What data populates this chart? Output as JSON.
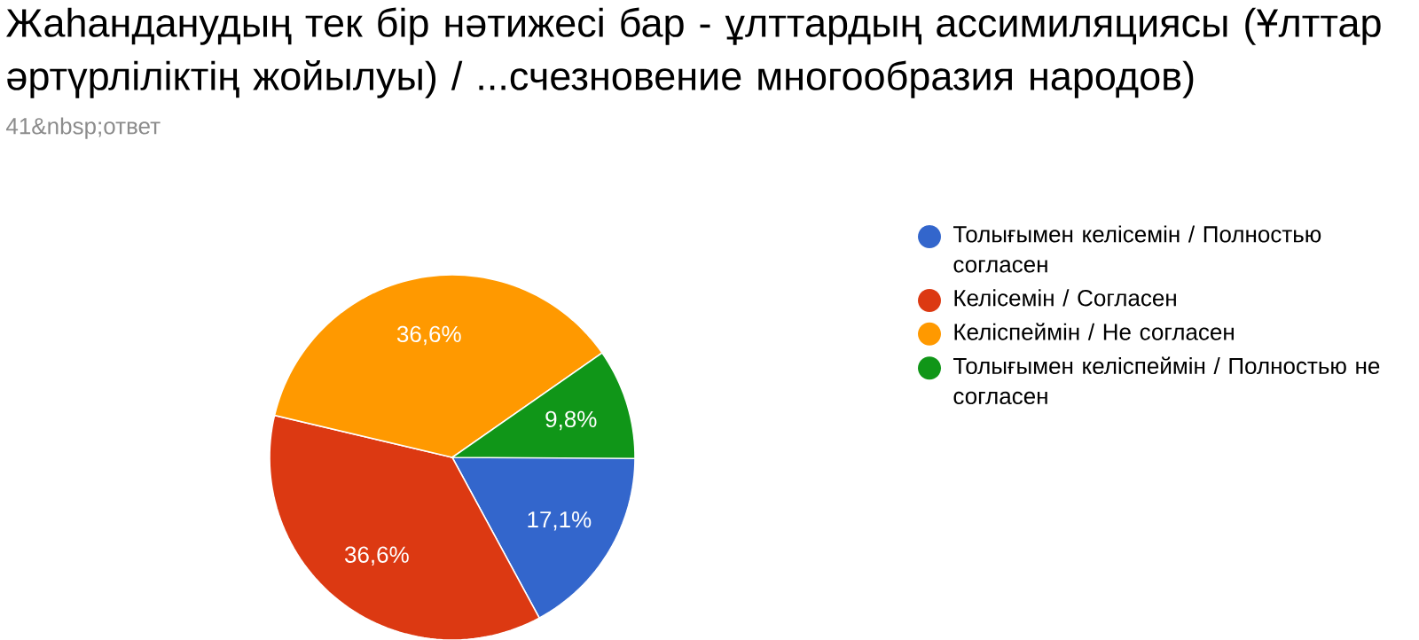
{
  "chart_data": {
    "type": "pie",
    "title": "Жаһанданудың тек бір нәтижесі бар - ұлттардың ассимиляциясы (Ұлттар әртүрліліктің жойылуы) / ...счезновение многообразия народов)",
    "subtitle": "41&nbsp;ответ",
    "categories": [
      "Толығымен келісемін / Полностью согласен",
      "Келісемін / Согласен",
      "Келіспеймін / Не согласен",
      "Толығымен келіспеймін / Полностью не согласен"
    ],
    "values": [
      17.1,
      36.6,
      36.6,
      9.8
    ],
    "colors": [
      "#3366cc",
      "#dc3912",
      "#ff9900",
      "#109618"
    ],
    "value_labels": [
      "17,1%",
      "36,6%",
      "36,6%",
      "9,8%"
    ],
    "legend": "right"
  }
}
